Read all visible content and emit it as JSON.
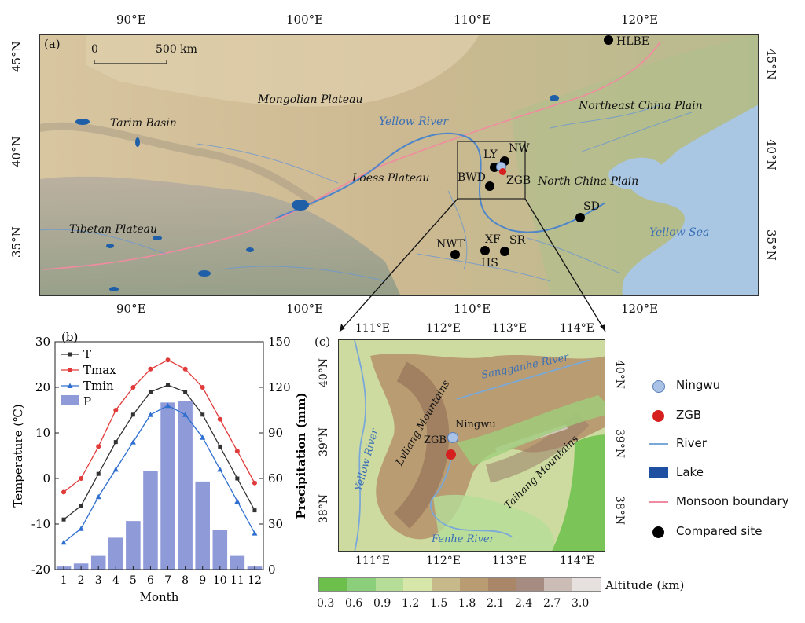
{
  "panel_a": {
    "label": "(a)",
    "scale_bar": {
      "start": "0",
      "end": "500 km"
    },
    "lon_labels": [
      "90°E",
      "100°E",
      "110°E",
      "120°E"
    ],
    "lat_labels": [
      "45°N",
      "40°N",
      "35°N"
    ],
    "regions": [
      "Mongolian Plateau",
      "Tarim Basin",
      "Northeast China Plain",
      "Loess Plateau",
      "North China Plain",
      "Tibetan Plateau",
      "Yellow Sea"
    ],
    "river_label": "Yellow River",
    "sites": [
      {
        "code": "HLBE",
        "type": "compared"
      },
      {
        "code": "LY",
        "type": "compared"
      },
      {
        "code": "NW",
        "type": "compared"
      },
      {
        "code": "BWD",
        "type": "compared"
      },
      {
        "code": "ZGB",
        "type": "zgb"
      },
      {
        "code": "SD",
        "type": "compared"
      },
      {
        "code": "XF",
        "type": "compared"
      },
      {
        "code": "NWT",
        "type": "compared"
      },
      {
        "code": "SR",
        "type": "compared"
      },
      {
        "code": "HS",
        "type": "compared"
      }
    ],
    "colors": {
      "land": "#c9b48f",
      "sea": "#a9c6e3",
      "lake": "#1f5fa8",
      "river": "#5b8fd1",
      "monsoon": "#f28aa0",
      "box": "#222222"
    }
  },
  "panel_c": {
    "label": "(c)",
    "lon_labels": [
      "111°E",
      "112°E",
      "113°E",
      "114°E"
    ],
    "lat_labels": [
      "40°N",
      "39°N",
      "38°N"
    ],
    "labels": [
      "Sangganhe River",
      "Yellow River",
      "Lvliang Mountains",
      "Taihang Mountains",
      "Fenhe River",
      "Ningwu",
      "ZGB"
    ]
  },
  "legend": {
    "items": [
      {
        "label": "Ningwu",
        "symbol": "circle",
        "color": "#a9c2e6"
      },
      {
        "label": "ZGB",
        "symbol": "circle",
        "color": "#d62020"
      },
      {
        "label": "River",
        "symbol": "line",
        "color": "#7aa8d8"
      },
      {
        "label": "Lake",
        "symbol": "rect",
        "color": "#1f4fa0"
      },
      {
        "label": "Monsoon boundary",
        "symbol": "line",
        "color": "#f08aa0"
      },
      {
        "label": "Compared site",
        "symbol": "circle",
        "color": "#000000"
      }
    ]
  },
  "altitude_bar": {
    "title": "Altitude (km)",
    "ticks": [
      "0.3",
      "0.6",
      "0.9",
      "1.2",
      "1.5",
      "1.8",
      "2.1",
      "2.4",
      "2.7",
      "3.0"
    ],
    "colors": [
      "#6cbf4a",
      "#8ccf7a",
      "#b5dd98",
      "#d7e7a9",
      "#c8b98a",
      "#b99c72",
      "#a98668",
      "#a68c80",
      "#cbbcb6",
      "#e6e1df"
    ]
  },
  "chart_data": {
    "type": "bar",
    "panel_label": "(b)",
    "categories": [
      "1",
      "2",
      "3",
      "4",
      "5",
      "6",
      "7",
      "8",
      "9",
      "10",
      "11",
      "12"
    ],
    "xlabel": "Month",
    "ylabel": "Temperature (℃)",
    "y2label": "Precipitation (mm)",
    "ylim": [
      -20,
      30
    ],
    "y2lim": [
      0,
      150
    ],
    "yticks": [
      "-20",
      "-10",
      "0",
      "10",
      "20",
      "30"
    ],
    "y2ticks": [
      "0",
      "30",
      "60",
      "90",
      "120",
      "150"
    ],
    "series": [
      {
        "name": "T",
        "type": "line",
        "axis": "left",
        "color": "#333333",
        "marker": "square",
        "values": [
          -9,
          -6,
          1,
          8,
          14,
          19,
          20.5,
          19,
          14,
          7,
          0,
          -7
        ]
      },
      {
        "name": "Tmax",
        "type": "line",
        "axis": "left",
        "color": "#e03a3a",
        "marker": "circle",
        "values": [
          -3,
          0,
          7,
          15,
          20,
          24,
          26,
          24,
          20,
          13,
          6,
          -1
        ]
      },
      {
        "name": "Tmin",
        "type": "line",
        "axis": "left",
        "color": "#2f6fd0",
        "marker": "triangle",
        "values": [
          -14,
          -11,
          -4,
          2,
          8,
          14,
          16,
          14,
          9,
          2,
          -5,
          -12
        ]
      },
      {
        "name": "P",
        "type": "bar",
        "axis": "right",
        "color": "#8f9ad8",
        "values": [
          2,
          4,
          9,
          21,
          32,
          65,
          110,
          111,
          58,
          26,
          9,
          2
        ]
      }
    ],
    "legend": "top-left"
  }
}
